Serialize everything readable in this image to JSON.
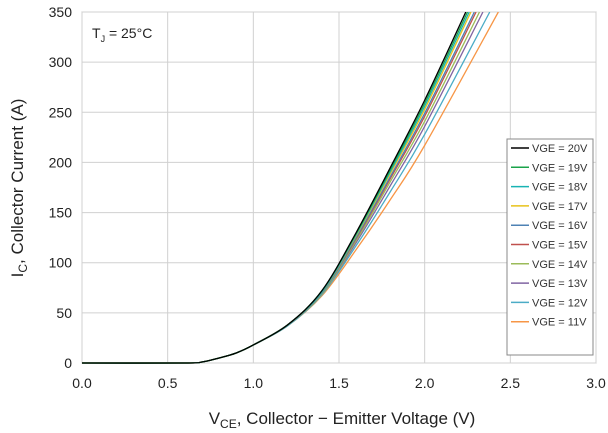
{
  "chart_data": {
    "type": "line",
    "title": "",
    "xlabel_main": "V",
    "xlabel_sub": "CE",
    "xlabel_rest": ", Collector − Emitter Voltage (V)",
    "ylabel_main": "I",
    "ylabel_sub": "C",
    "ylabel_rest": ", Collector Current (A)",
    "annotation_main": "T",
    "annotation_sub": "J",
    "annotation_rest": " = 25°C",
    "xlim": [
      0,
      3.0
    ],
    "ylim": [
      0,
      350
    ],
    "x_ticks": [
      "0.0",
      "0.5",
      "1.0",
      "1.5",
      "2.0",
      "2.5",
      "3.0"
    ],
    "y_ticks": [
      "0",
      "50",
      "100",
      "150",
      "200",
      "250",
      "300",
      "350"
    ],
    "grid": true,
    "legend_position": "right",
    "series": [
      {
        "name": "VGE = 20V",
        "color": "#000000",
        "x": [
          0,
          0.6,
          0.7,
          0.8,
          0.9,
          1.0,
          1.2,
          1.4,
          1.6,
          1.8,
          2.0,
          2.24
        ],
        "y": [
          0,
          0,
          1,
          5,
          10,
          18,
          38,
          72,
          130,
          195,
          262,
          350
        ]
      },
      {
        "name": "VGE = 19V",
        "color": "#1aa34a",
        "x": [
          0,
          0.6,
          0.7,
          0.8,
          0.9,
          1.0,
          1.2,
          1.4,
          1.6,
          1.8,
          2.0,
          2.25
        ],
        "y": [
          0,
          0,
          1,
          5,
          10,
          18,
          38,
          72,
          129,
          193,
          259,
          350
        ]
      },
      {
        "name": "VGE = 18V",
        "color": "#19b3b3",
        "x": [
          0,
          0.6,
          0.7,
          0.8,
          0.9,
          1.0,
          1.2,
          1.4,
          1.6,
          1.8,
          2.0,
          2.26
        ],
        "y": [
          0,
          0,
          1,
          5,
          10,
          18,
          38,
          71,
          128,
          191,
          256,
          350
        ]
      },
      {
        "name": "VGE = 17V",
        "color": "#e8c21a",
        "x": [
          0,
          0.6,
          0.7,
          0.8,
          0.9,
          1.0,
          1.2,
          1.4,
          1.6,
          1.8,
          2.0,
          2.27
        ],
        "y": [
          0,
          0,
          1,
          5,
          10,
          18,
          38,
          71,
          127,
          189,
          253,
          350
        ]
      },
      {
        "name": "VGE = 16V",
        "color": "#4e82b4",
        "x": [
          0,
          0.6,
          0.7,
          0.8,
          0.9,
          1.0,
          1.2,
          1.4,
          1.6,
          1.8,
          2.0,
          2.29
        ],
        "y": [
          0,
          0,
          1,
          5,
          10,
          18,
          38,
          70,
          125,
          186,
          249,
          350
        ]
      },
      {
        "name": "VGE = 15V",
        "color": "#c0504d",
        "x": [
          0,
          0.6,
          0.7,
          0.8,
          0.9,
          1.0,
          1.2,
          1.4,
          1.6,
          1.8,
          2.0,
          2.3
        ],
        "y": [
          0,
          0,
          1,
          5,
          10,
          18,
          38,
          70,
          124,
          184,
          246,
          350
        ]
      },
      {
        "name": "VGE = 14V",
        "color": "#9bbb59",
        "x": [
          0,
          0.6,
          0.7,
          0.8,
          0.9,
          1.0,
          1.2,
          1.4,
          1.6,
          1.8,
          2.0,
          2.32
        ],
        "y": [
          0,
          0,
          1,
          5,
          10,
          18,
          38,
          69,
          122,
          181,
          241,
          350
        ]
      },
      {
        "name": "VGE = 13V",
        "color": "#8064a2",
        "x": [
          0,
          0.6,
          0.7,
          0.8,
          0.9,
          1.0,
          1.2,
          1.4,
          1.6,
          1.8,
          2.0,
          2.34
        ],
        "y": [
          0,
          0,
          1,
          5,
          10,
          18,
          38,
          69,
          120,
          177,
          236,
          350
        ]
      },
      {
        "name": "VGE = 12V",
        "color": "#4bacc6",
        "x": [
          0,
          0.6,
          0.7,
          0.8,
          0.9,
          1.0,
          1.2,
          1.4,
          1.6,
          1.8,
          2.0,
          2.38
        ],
        "y": [
          0,
          0,
          1,
          5,
          10,
          18,
          37,
          68,
          117,
          171,
          228,
          350
        ]
      },
      {
        "name": "VGE = 11V",
        "color": "#f79646",
        "x": [
          0,
          0.6,
          0.7,
          0.8,
          0.9,
          1.0,
          1.2,
          1.4,
          1.6,
          1.8,
          2.0,
          2.43
        ],
        "y": [
          0,
          0,
          1,
          5,
          10,
          18,
          37,
          67,
          113,
          163,
          217,
          350
        ]
      }
    ]
  }
}
